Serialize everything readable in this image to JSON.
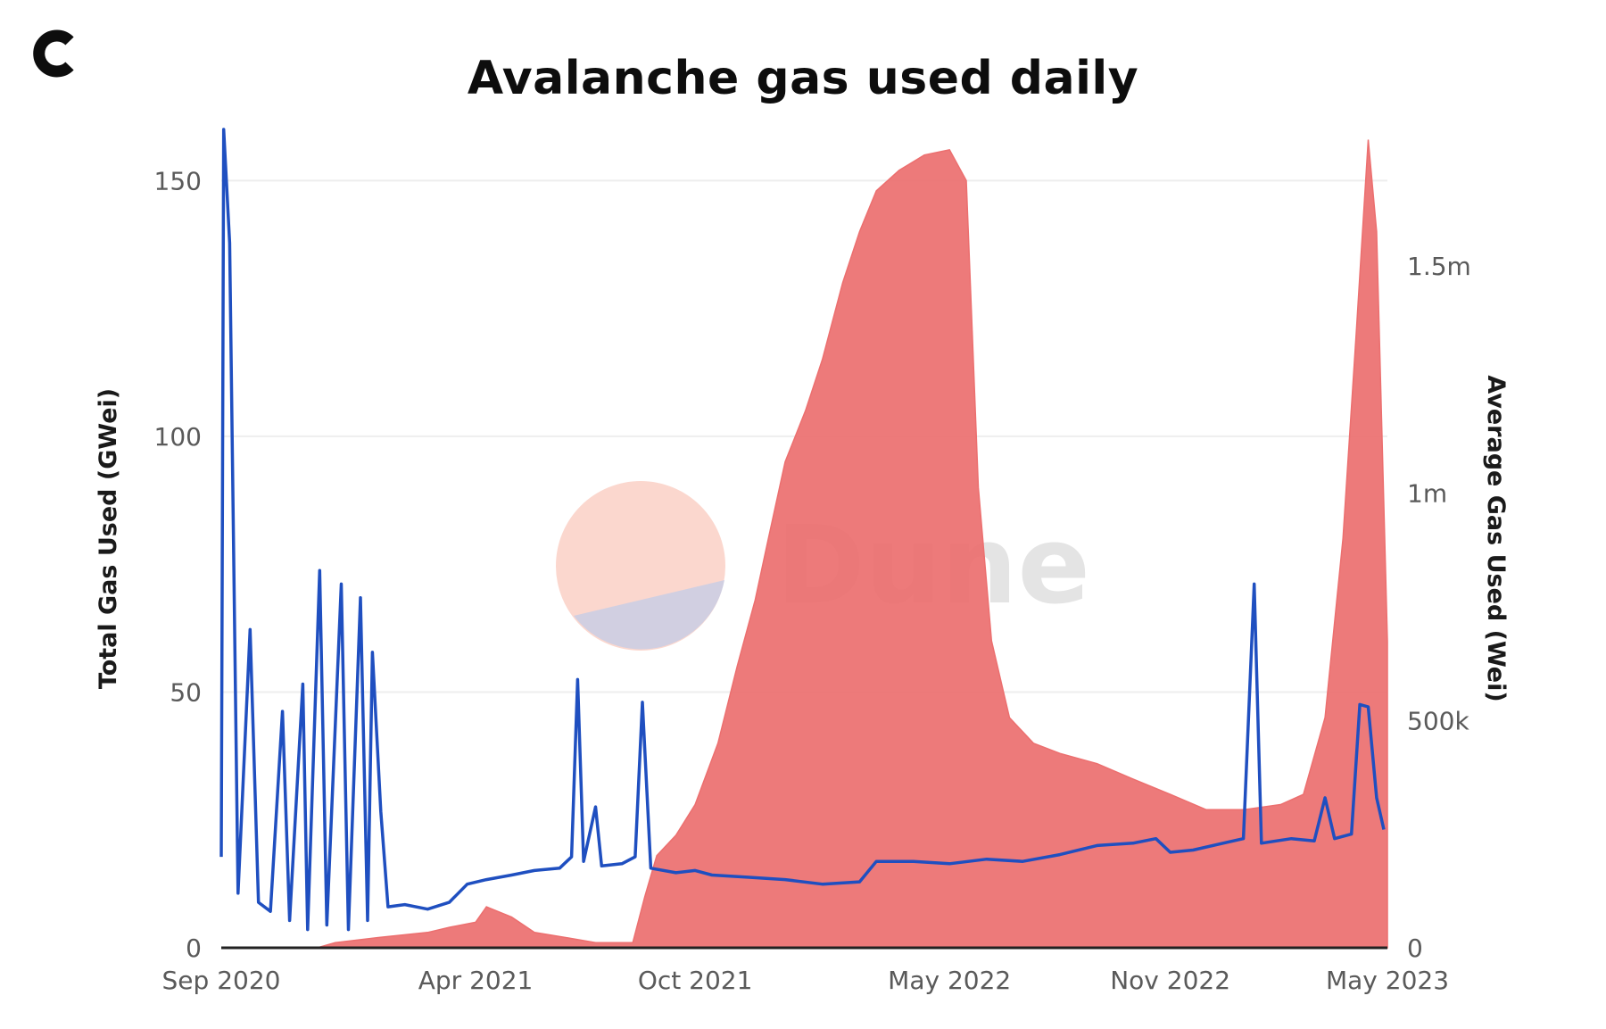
{
  "logo_icon": "c-monogram-icon",
  "watermark": {
    "text": "Dune",
    "icon": "dune-logo-icon"
  },
  "chart_data": {
    "type": "area+line",
    "title": "Avalanche gas used daily",
    "x_tick_labels": [
      "Sep 2020",
      "Apr 2021",
      "Oct 2021",
      "May 2022",
      "Nov 2022",
      "May 2023"
    ],
    "x_ticks": [
      "2020-09-01",
      "2021-04-01",
      "2021-10-01",
      "2022-05-01",
      "2022-11-01",
      "2023-05-01"
    ],
    "x_range": [
      "2020-09-01",
      "2023-05-01"
    ],
    "y_left": {
      "label": "Total Gas Used (GWei)",
      "ticks": [
        0,
        50,
        100,
        150
      ],
      "range": [
        0,
        160
      ]
    },
    "y_right": {
      "label": "Average Gas Used (Wei)",
      "ticks": [
        0,
        500000,
        1000000,
        1500000
      ],
      "tick_labels": [
        "0",
        "500k",
        "1m",
        "1.5m"
      ],
      "range": [
        0,
        1800000
      ]
    },
    "colors": {
      "area": "#ec6f6f",
      "line": "#1f4fc0",
      "grid": "#eeeeee",
      "axis": "#222222"
    },
    "series": [
      {
        "name": "Total Gas Used (GWei)",
        "axis": "left",
        "style": "area",
        "points": [
          [
            "2020-09-01",
            0
          ],
          [
            "2020-11-20",
            0
          ],
          [
            "2020-12-05",
            1
          ],
          [
            "2021-01-10",
            2
          ],
          [
            "2021-02-20",
            3
          ],
          [
            "2021-03-10",
            4
          ],
          [
            "2021-04-01",
            5
          ],
          [
            "2021-04-10",
            8
          ],
          [
            "2021-05-01",
            6
          ],
          [
            "2021-05-20",
            3
          ],
          [
            "2021-06-15",
            2
          ],
          [
            "2021-07-10",
            1
          ],
          [
            "2021-08-10",
            1
          ],
          [
            "2021-08-20",
            10
          ],
          [
            "2021-08-30",
            18
          ],
          [
            "2021-09-15",
            22
          ],
          [
            "2021-10-01",
            28
          ],
          [
            "2021-10-20",
            40
          ],
          [
            "2021-11-05",
            55
          ],
          [
            "2021-11-20",
            68
          ],
          [
            "2021-12-01",
            80
          ],
          [
            "2021-12-15",
            95
          ],
          [
            "2022-01-01",
            105
          ],
          [
            "2022-01-15",
            115
          ],
          [
            "2022-02-01",
            130
          ],
          [
            "2022-02-15",
            140
          ],
          [
            "2022-03-01",
            148
          ],
          [
            "2022-03-20",
            152
          ],
          [
            "2022-04-10",
            155
          ],
          [
            "2022-05-01",
            156
          ],
          [
            "2022-05-15",
            150
          ],
          [
            "2022-05-25",
            90
          ],
          [
            "2022-06-05",
            60
          ],
          [
            "2022-06-20",
            45
          ],
          [
            "2022-07-10",
            40
          ],
          [
            "2022-08-01",
            38
          ],
          [
            "2022-09-01",
            36
          ],
          [
            "2022-10-01",
            33
          ],
          [
            "2022-11-01",
            30
          ],
          [
            "2022-12-01",
            27
          ],
          [
            "2023-01-01",
            27
          ],
          [
            "2023-02-01",
            28
          ],
          [
            "2023-02-20",
            30
          ],
          [
            "2023-03-10",
            45
          ],
          [
            "2023-03-25",
            80
          ],
          [
            "2023-04-05",
            120
          ],
          [
            "2023-04-15",
            158
          ],
          [
            "2023-04-22",
            140
          ],
          [
            "2023-05-01",
            60
          ]
        ]
      },
      {
        "name": "Average Gas Used (Wei)",
        "axis": "right",
        "style": "line",
        "points": [
          [
            "2020-09-01",
            200000
          ],
          [
            "2020-09-03",
            1800000
          ],
          [
            "2020-09-08",
            1550000
          ],
          [
            "2020-09-15",
            120000
          ],
          [
            "2020-09-25",
            700000
          ],
          [
            "2020-10-02",
            100000
          ],
          [
            "2020-10-12",
            80000
          ],
          [
            "2020-10-22",
            520000
          ],
          [
            "2020-10-28",
            60000
          ],
          [
            "2020-11-08",
            580000
          ],
          [
            "2020-11-12",
            40000
          ],
          [
            "2020-11-22",
            830000
          ],
          [
            "2020-11-28",
            50000
          ],
          [
            "2020-12-10",
            800000
          ],
          [
            "2020-12-16",
            40000
          ],
          [
            "2020-12-26",
            770000
          ],
          [
            "2021-01-01",
            60000
          ],
          [
            "2021-01-05",
            650000
          ],
          [
            "2021-01-12",
            300000
          ],
          [
            "2021-01-18",
            90000
          ],
          [
            "2021-02-01",
            95000
          ],
          [
            "2021-02-20",
            85000
          ],
          [
            "2021-03-10",
            100000
          ],
          [
            "2021-03-25",
            140000
          ],
          [
            "2021-04-10",
            150000
          ],
          [
            "2021-05-01",
            160000
          ],
          [
            "2021-05-20",
            170000
          ],
          [
            "2021-06-10",
            175000
          ],
          [
            "2021-06-20",
            200000
          ],
          [
            "2021-06-25",
            590000
          ],
          [
            "2021-06-30",
            190000
          ],
          [
            "2021-07-10",
            310000
          ],
          [
            "2021-07-15",
            180000
          ],
          [
            "2021-08-01",
            185000
          ],
          [
            "2021-08-12",
            200000
          ],
          [
            "2021-08-18",
            540000
          ],
          [
            "2021-08-25",
            175000
          ],
          [
            "2021-09-15",
            165000
          ],
          [
            "2021-10-01",
            170000
          ],
          [
            "2021-10-15",
            160000
          ],
          [
            "2021-11-15",
            155000
          ],
          [
            "2021-12-15",
            150000
          ],
          [
            "2022-01-15",
            140000
          ],
          [
            "2022-02-15",
            145000
          ],
          [
            "2022-03-01",
            190000
          ],
          [
            "2022-04-01",
            190000
          ],
          [
            "2022-05-01",
            185000
          ],
          [
            "2022-06-01",
            195000
          ],
          [
            "2022-07-01",
            190000
          ],
          [
            "2022-08-01",
            205000
          ],
          [
            "2022-09-01",
            225000
          ],
          [
            "2022-10-01",
            230000
          ],
          [
            "2022-10-20",
            240000
          ],
          [
            "2022-11-01",
            210000
          ],
          [
            "2022-11-20",
            215000
          ],
          [
            "2022-12-15",
            230000
          ],
          [
            "2023-01-01",
            240000
          ],
          [
            "2023-01-10",
            800000
          ],
          [
            "2023-01-16",
            230000
          ],
          [
            "2023-02-10",
            240000
          ],
          [
            "2023-03-01",
            235000
          ],
          [
            "2023-03-10",
            330000
          ],
          [
            "2023-03-18",
            240000
          ],
          [
            "2023-04-01",
            250000
          ],
          [
            "2023-04-08",
            535000
          ],
          [
            "2023-04-15",
            530000
          ],
          [
            "2023-04-22",
            330000
          ],
          [
            "2023-04-28",
            260000
          ]
        ]
      }
    ]
  }
}
